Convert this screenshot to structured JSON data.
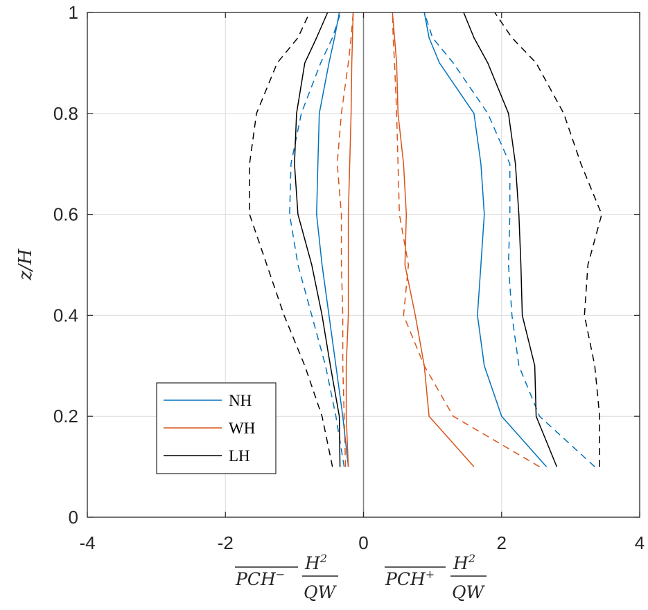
{
  "chart_data": {
    "type": "line",
    "xlim": [
      -4,
      4
    ],
    "ylim": [
      0,
      1
    ],
    "xticks": [
      -4,
      -2,
      0,
      2,
      4
    ],
    "yticks": [
      0,
      0.2,
      0.4,
      0.6,
      0.8,
      1
    ],
    "xtick_labels": [
      "-4",
      "-2",
      "0",
      "2",
      "4"
    ],
    "ytick_labels": [
      "0",
      "0.2",
      "0.4",
      "0.6",
      "0.8",
      "1"
    ],
    "grid": true,
    "ylabel": "z/H",
    "xlabel_left": {
      "overline": "PCH",
      "sup": "−",
      "num": "H",
      "num_sup": "2",
      "den": "QW"
    },
    "xlabel_right": {
      "overline": "PCH",
      "sup": "+",
      "num": "H",
      "num_sup": "2",
      "den": "QW"
    },
    "legend": {
      "placement": "lower-left",
      "entries": [
        {
          "name": "NH",
          "color": "#0072BD"
        },
        {
          "name": "WH",
          "color": "#D95319"
        },
        {
          "name": "LH",
          "color": "#000000"
        }
      ]
    },
    "zero_line_color": "#808080",
    "series": [
      {
        "group": "NH",
        "side": "negative",
        "style": "solid",
        "color": "#0072BD",
        "x": [
          -0.22,
          -0.3,
          -0.4,
          -0.5,
          -0.6,
          -0.68,
          -0.66,
          -0.64,
          -0.5,
          -0.42,
          -0.35
        ],
        "y": [
          0.1,
          0.2,
          0.3,
          0.4,
          0.5,
          0.6,
          0.7,
          0.8,
          0.9,
          0.95,
          1.0
        ]
      },
      {
        "group": "NH",
        "side": "negative",
        "style": "dashed",
        "color": "#0072BD",
        "x": [
          -0.28,
          -0.4,
          -0.55,
          -0.75,
          -0.95,
          -1.07,
          -1.05,
          -0.9,
          -0.62,
          -0.45,
          -0.33
        ],
        "y": [
          0.1,
          0.2,
          0.3,
          0.4,
          0.5,
          0.6,
          0.7,
          0.8,
          0.9,
          0.95,
          1.0
        ]
      },
      {
        "group": "NH",
        "side": "positive",
        "style": "solid",
        "color": "#0072BD",
        "x": [
          2.65,
          2.0,
          1.75,
          1.65,
          1.7,
          1.75,
          1.7,
          1.6,
          1.1,
          0.95,
          0.88
        ],
        "y": [
          0.1,
          0.2,
          0.3,
          0.4,
          0.5,
          0.6,
          0.7,
          0.8,
          0.9,
          0.95,
          1.0
        ]
      },
      {
        "group": "NH",
        "side": "positive",
        "style": "dashed",
        "color": "#0072BD",
        "x": [
          3.35,
          2.55,
          2.25,
          2.15,
          2.1,
          2.12,
          2.12,
          1.8,
          1.3,
          1.0,
          0.88
        ],
        "y": [
          0.1,
          0.2,
          0.3,
          0.4,
          0.5,
          0.6,
          0.7,
          0.8,
          0.9,
          0.95,
          1.0
        ]
      },
      {
        "group": "WH",
        "side": "negative",
        "style": "solid",
        "color": "#D95319",
        "x": [
          -0.22,
          -0.25,
          -0.25,
          -0.22,
          -0.22,
          -0.22,
          -0.2,
          -0.18,
          -0.17,
          -0.16,
          -0.15
        ],
        "y": [
          0.1,
          0.2,
          0.3,
          0.4,
          0.5,
          0.6,
          0.7,
          0.8,
          0.9,
          0.95,
          1.0
        ]
      },
      {
        "group": "WH",
        "side": "negative",
        "style": "dashed",
        "color": "#D95319",
        "x": [
          -0.26,
          -0.28,
          -0.3,
          -0.3,
          -0.32,
          -0.32,
          -0.38,
          -0.32,
          -0.22,
          -0.18,
          -0.15
        ],
        "y": [
          0.1,
          0.2,
          0.3,
          0.4,
          0.5,
          0.6,
          0.7,
          0.8,
          0.9,
          0.95,
          1.0
        ]
      },
      {
        "group": "WH",
        "side": "positive",
        "style": "solid",
        "color": "#D95319",
        "x": [
          1.6,
          0.95,
          0.88,
          0.75,
          0.6,
          0.62,
          0.58,
          0.5,
          0.48,
          0.45,
          0.42
        ],
        "y": [
          0.1,
          0.2,
          0.3,
          0.4,
          0.5,
          0.6,
          0.7,
          0.8,
          0.9,
          0.95,
          1.0
        ]
      },
      {
        "group": "WH",
        "side": "positive",
        "style": "dashed",
        "color": "#D95319",
        "x": [
          2.55,
          1.3,
          0.88,
          0.58,
          0.65,
          0.52,
          0.5,
          0.48,
          0.45,
          0.43,
          0.42
        ],
        "y": [
          0.1,
          0.2,
          0.3,
          0.4,
          0.5,
          0.6,
          0.7,
          0.8,
          0.9,
          0.95,
          1.0
        ]
      },
      {
        "group": "LH",
        "side": "negative",
        "style": "solid",
        "color": "#000000",
        "x": [
          -0.34,
          -0.35,
          -0.48,
          -0.6,
          -0.75,
          -0.95,
          -1.0,
          -0.97,
          -0.85,
          -0.68,
          -0.52
        ],
        "y": [
          0.1,
          0.2,
          0.3,
          0.4,
          0.5,
          0.6,
          0.7,
          0.8,
          0.9,
          0.95,
          1.0
        ]
      },
      {
        "group": "LH",
        "side": "negative",
        "style": "dashed",
        "color": "#000000",
        "x": [
          -0.45,
          -0.6,
          -0.85,
          -1.15,
          -1.4,
          -1.65,
          -1.65,
          -1.55,
          -1.25,
          -0.95,
          -0.78
        ],
        "y": [
          0.1,
          0.2,
          0.3,
          0.4,
          0.5,
          0.6,
          0.7,
          0.8,
          0.9,
          0.95,
          1.0
        ]
      },
      {
        "group": "LH",
        "side": "positive",
        "style": "solid",
        "color": "#000000",
        "x": [
          2.8,
          2.5,
          2.48,
          2.3,
          2.28,
          2.25,
          2.2,
          2.1,
          1.8,
          1.6,
          1.45
        ],
        "y": [
          0.1,
          0.2,
          0.3,
          0.4,
          0.5,
          0.6,
          0.7,
          0.8,
          0.9,
          0.95,
          1.0
        ]
      },
      {
        "group": "LH",
        "side": "positive",
        "style": "dashed",
        "color": "#000000",
        "x": [
          3.42,
          3.42,
          3.35,
          3.2,
          3.25,
          3.45,
          3.15,
          2.9,
          2.5,
          2.15,
          1.9
        ],
        "y": [
          0.1,
          0.2,
          0.3,
          0.4,
          0.5,
          0.6,
          0.7,
          0.8,
          0.9,
          0.95,
          1.0
        ]
      }
    ]
  }
}
